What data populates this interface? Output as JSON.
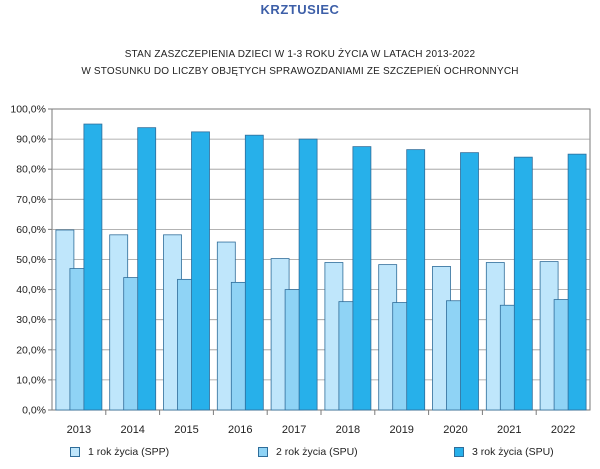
{
  "header": {
    "text": "KRZTUSIEC"
  },
  "chart_data": {
    "type": "bar",
    "title": "STAN ZASZCZEPIENIA DZIECI W 1-3 ROKU ŻYCIA W LATACH 2013-2022",
    "subtitle": "W STOSUNKU DO LICZBY OBJĘTYCH SPRAWOZDANIAMI ZE SZCZEPIEŃ OCHRONNYCH",
    "categories": [
      "2013",
      "2014",
      "2015",
      "2016",
      "2017",
      "2018",
      "2019",
      "2020",
      "2021",
      "2022"
    ],
    "series": [
      {
        "name": "1 rok życia (SPP)",
        "color": "#bfe6fb",
        "values": [
          59.8,
          58.2,
          58.2,
          55.8,
          50.3,
          49.0,
          48.3,
          47.7,
          49.0,
          49.3
        ]
      },
      {
        "name": "2 rok życia (SPU)",
        "color": "#8fd3f5",
        "values": [
          47.0,
          44.0,
          43.4,
          42.4,
          40.0,
          36.0,
          35.7,
          36.3,
          34.8,
          36.7
        ]
      },
      {
        "name": "3 rok życia (SPU)",
        "color": "#27b0ea",
        "values": [
          95.0,
          93.8,
          92.4,
          91.3,
          90.0,
          87.5,
          86.5,
          85.5,
          84.0,
          85.0
        ]
      }
    ],
    "ylim": [
      0,
      100
    ],
    "y_ticks": [
      "0,0%",
      "10,0%",
      "20,0%",
      "30,0%",
      "40,0%",
      "50,0%",
      "60,0%",
      "70,0%",
      "80,0%",
      "90,0%",
      "100,0%"
    ],
    "grid": true,
    "legend_position": "bottom"
  }
}
